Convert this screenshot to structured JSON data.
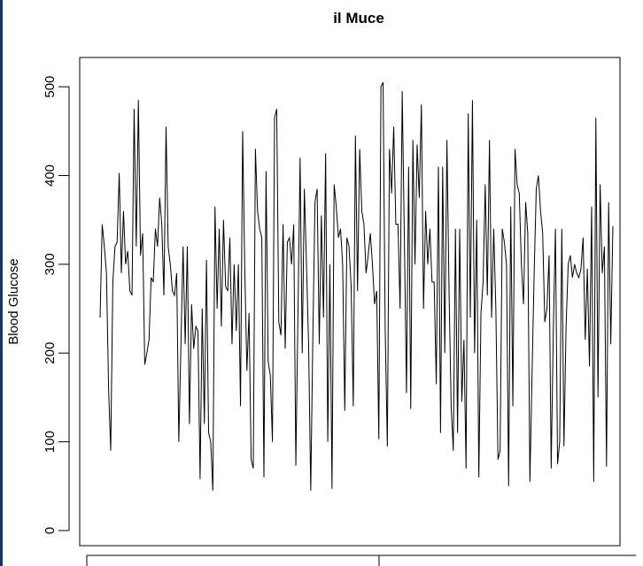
{
  "chart_data": {
    "type": "line",
    "title": "il Muce",
    "y_label": "Blood Glucose",
    "color": "#000000",
    "ylim": [
      -17,
      533
    ],
    "yticks": [
      0,
      100,
      200,
      300,
      400,
      500
    ],
    "values": [
      240,
      345,
      320,
      290,
      160,
      90,
      280,
      320,
      325,
      403,
      290,
      360,
      300,
      315,
      270,
      265,
      475,
      320,
      485,
      310,
      335,
      187,
      200,
      215,
      285,
      280,
      340,
      320,
      375,
      345,
      265,
      455,
      320,
      300,
      270,
      265,
      290,
      100,
      210,
      320,
      210,
      320,
      120,
      255,
      205,
      230,
      225,
      58,
      250,
      120,
      305,
      110,
      100,
      45,
      365,
      250,
      340,
      230,
      350,
      275,
      270,
      330,
      210,
      300,
      225,
      300,
      140,
      450,
      295,
      180,
      245,
      80,
      70,
      430,
      360,
      340,
      330,
      60,
      405,
      190,
      175,
      100,
      465,
      475,
      235,
      220,
      345,
      205,
      325,
      330,
      300,
      345,
      73,
      245,
      420,
      200,
      385,
      300,
      210,
      45,
      220,
      370,
      385,
      210,
      355,
      240,
      425,
      100,
      300,
      47,
      390,
      365,
      330,
      340,
      300,
      135,
      330,
      320,
      275,
      140,
      445,
      270,
      430,
      360,
      345,
      290,
      310,
      335,
      300,
      255,
      270,
      103,
      500,
      505,
      225,
      95,
      430,
      380,
      455,
      345,
      345,
      250,
      495,
      330,
      155,
      410,
      137,
      440,
      300,
      435,
      375,
      480,
      250,
      360,
      300,
      340,
      280,
      280,
      165,
      410,
      110,
      410,
      200,
      440,
      270,
      140,
      90,
      340,
      110,
      340,
      145,
      215,
      70,
      470,
      240,
      485,
      200,
      350,
      60,
      245,
      280,
      390,
      265,
      440,
      240,
      340,
      250,
      80,
      90,
      340,
      325,
      300,
      50,
      365,
      140,
      430,
      390,
      380,
      300,
      255,
      370,
      335,
      55,
      175,
      290,
      385,
      400,
      360,
      335,
      235,
      250,
      310,
      70,
      225,
      340,
      75,
      100,
      340,
      95,
      230,
      300,
      310,
      285,
      300,
      290,
      285,
      295,
      330,
      215,
      295,
      185,
      365,
      55,
      465,
      150,
      390,
      290,
      320,
      72,
      370,
      210,
      343
    ]
  }
}
